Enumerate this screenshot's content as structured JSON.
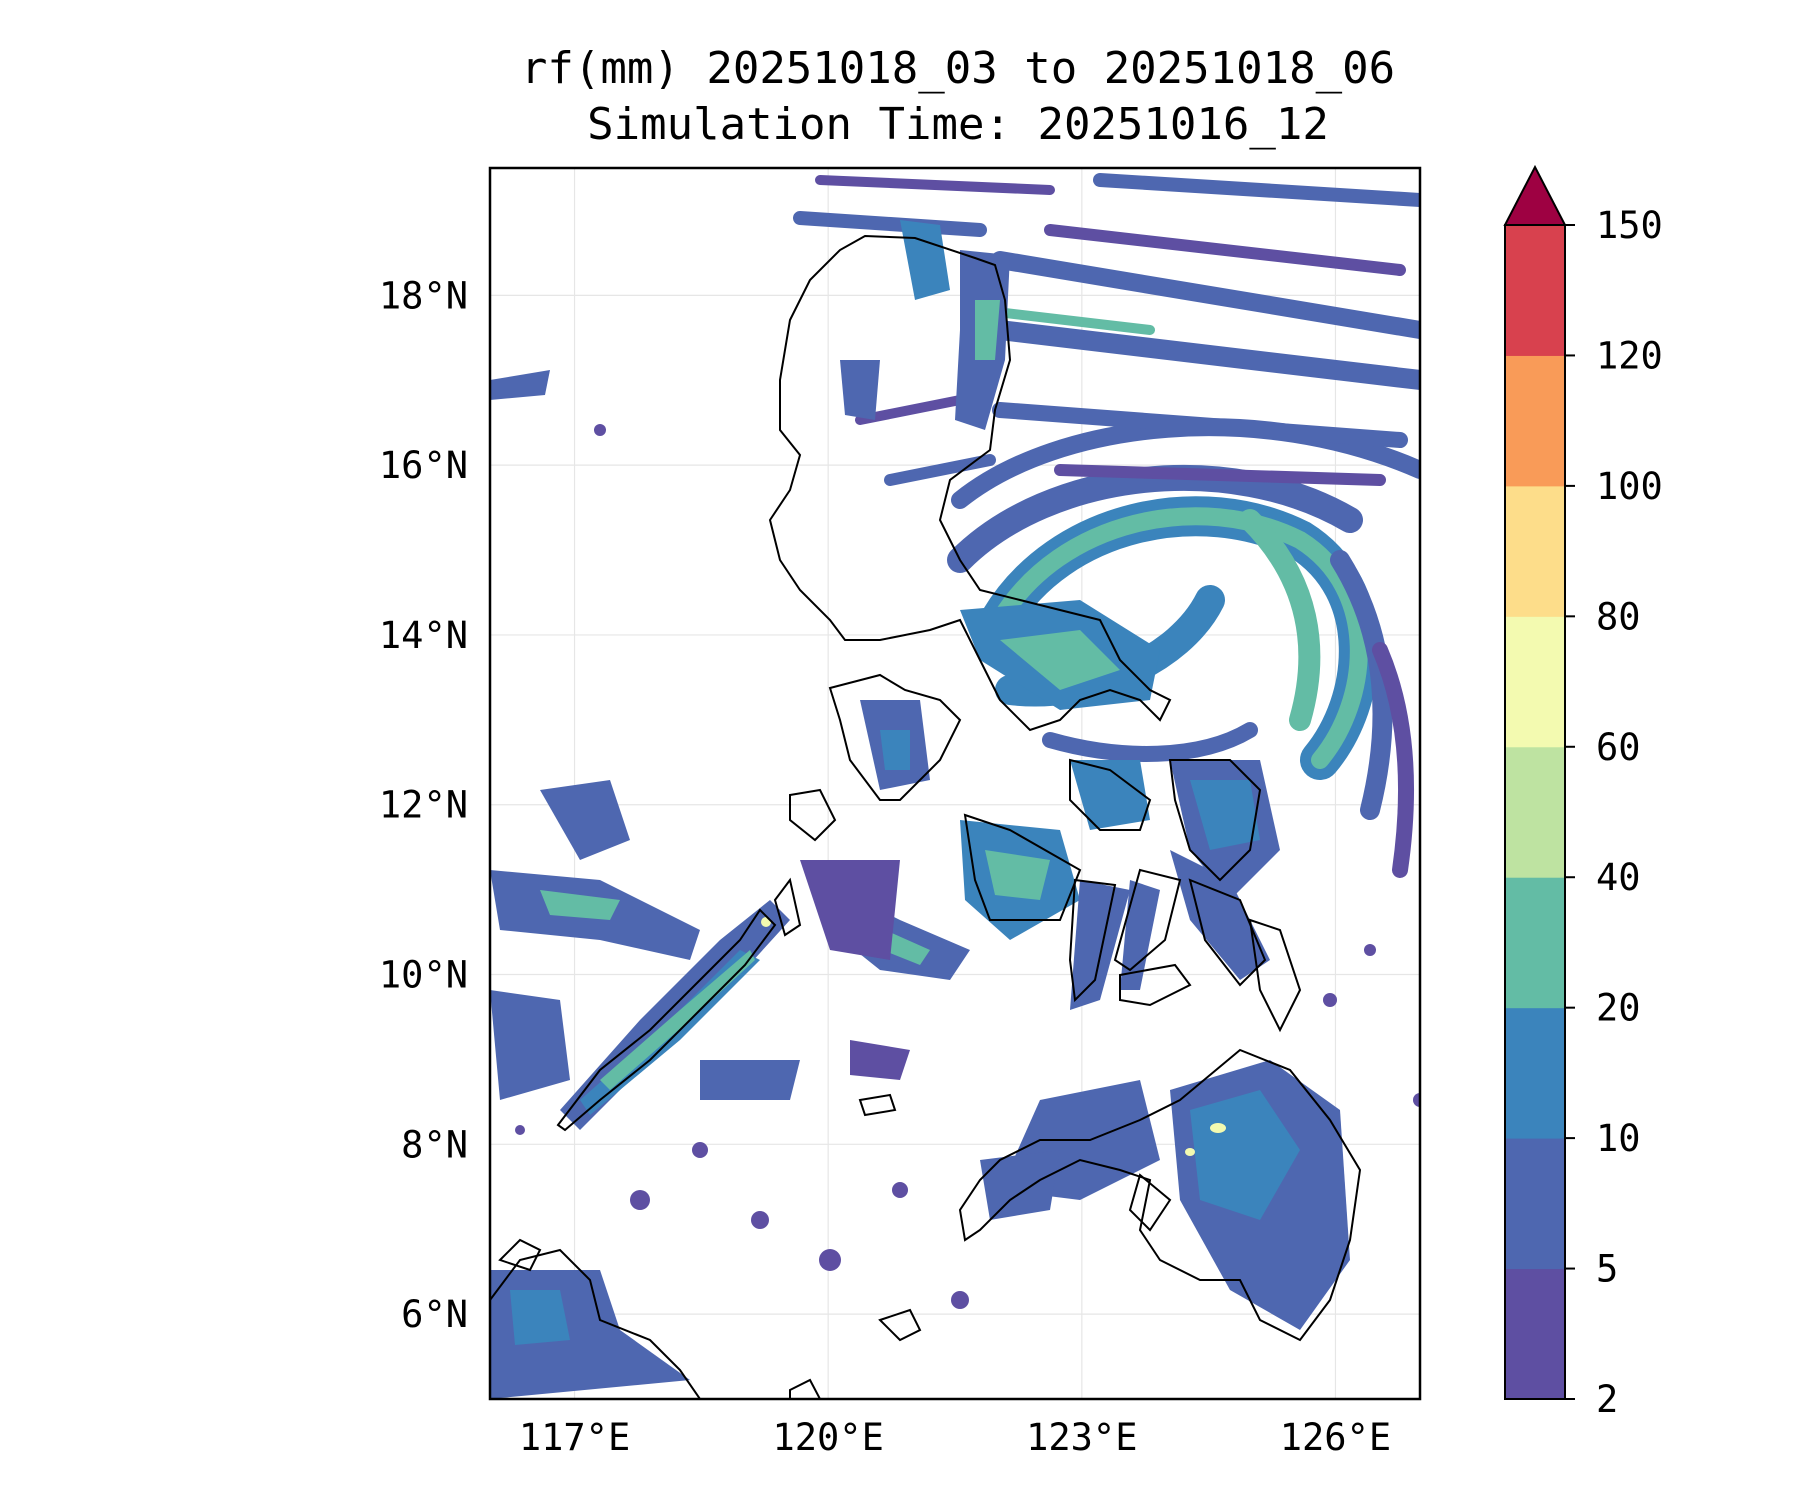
{
  "title": {
    "line1": "rf(mm) 20251018_03 to 20251018_06",
    "line2": "Simulation Time: 20251016_12"
  },
  "map": {
    "lon_range": [
      116.0,
      127.0
    ],
    "lat_range": [
      5.0,
      19.5
    ],
    "lon_ticks": [
      {
        "value": 117,
        "label": "117°E"
      },
      {
        "value": 120,
        "label": "120°E"
      },
      {
        "value": 123,
        "label": "123°E"
      },
      {
        "value": 126,
        "label": "126°E"
      }
    ],
    "lat_ticks": [
      {
        "value": 6,
        "label": "6°N"
      },
      {
        "value": 8,
        "label": "8°N"
      },
      {
        "value": 10,
        "label": "10°N"
      },
      {
        "value": 12,
        "label": "12°N"
      },
      {
        "value": 14,
        "label": "14°N"
      },
      {
        "value": 16,
        "label": "16°N"
      },
      {
        "value": 18,
        "label": "18°N"
      }
    ],
    "gridlines": true
  },
  "colorbar": {
    "levels": [
      {
        "value": 2,
        "label": "2"
      },
      {
        "value": 5,
        "label": "5"
      },
      {
        "value": 10,
        "label": "10"
      },
      {
        "value": 20,
        "label": "20"
      },
      {
        "value": 40,
        "label": "40"
      },
      {
        "value": 60,
        "label": "60"
      },
      {
        "value": 80,
        "label": "80"
      },
      {
        "value": 100,
        "label": "100"
      },
      {
        "value": 120,
        "label": "120"
      },
      {
        "value": 150,
        "label": "150"
      }
    ],
    "colors": [
      "#5e4fa2",
      "#4e67b0",
      "#3b84bc",
      "#63bca5",
      "#bee3a1",
      "#f3fab0",
      "#fddd8a",
      "#f99b58",
      "#d8414e"
    ],
    "extend_color": "#9e0142"
  }
}
